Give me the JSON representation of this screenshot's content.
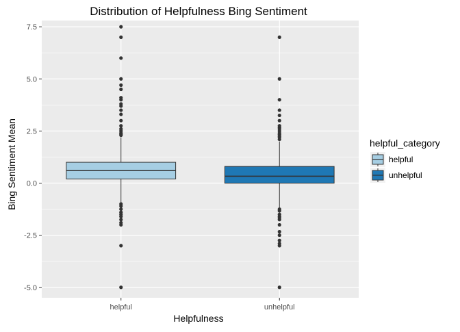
{
  "chart_data": {
    "type": "boxplot",
    "title": "Distribution of Helpfulness Bing Sentiment",
    "xlabel": "Helpfulness",
    "ylabel": "Bing Sentiment Mean",
    "ylim": [
      -5.5,
      7.8
    ],
    "yticks": [
      -5.0,
      -2.5,
      0.0,
      2.5,
      5.0,
      7.5
    ],
    "ytick_labels": [
      "-5.0",
      "-2.5",
      "0.0",
      "2.5",
      "5.0",
      "7.5"
    ],
    "categories": [
      "helpful",
      "unhelpful"
    ],
    "grid": true,
    "legend": {
      "title": "helpful_category",
      "position": "right",
      "entries": [
        "helpful",
        "unhelpful"
      ]
    },
    "colors": {
      "panel": "#EBEBEB",
      "grid": "#FFFFFF",
      "box_line": "#333333",
      "outlier": "#333333"
    },
    "boxes": [
      {
        "category": "helpful",
        "fill": "#A6CEE3",
        "q1": 0.2,
        "median": 0.6,
        "q3": 1.0,
        "whisker_low": -0.95,
        "whisker_high": 2.2,
        "outliers": [
          7.5,
          7.0,
          6.0,
          5.0,
          4.7,
          4.5,
          4.1,
          4.0,
          3.8,
          3.7,
          3.5,
          3.3,
          3.0,
          2.75,
          2.6,
          2.5,
          2.4,
          2.35,
          2.3,
          -1.0,
          -1.1,
          -1.25,
          -1.4,
          -1.5,
          -1.6,
          -1.75,
          -1.9,
          -2.0,
          -3.0,
          -5.0
        ]
      },
      {
        "category": "unhelpful",
        "fill": "#1F78B4",
        "q1": 0.0,
        "median": 0.33,
        "q3": 0.8,
        "whisker_low": -1.2,
        "whisker_high": 2.0,
        "outliers": [
          7.0,
          5.0,
          4.0,
          3.5,
          3.25,
          3.0,
          2.75,
          2.67,
          2.6,
          2.5,
          2.4,
          2.33,
          2.25,
          2.2,
          2.1,
          -1.25,
          -1.33,
          -1.5,
          -1.6,
          -1.67,
          -1.75,
          -2.0,
          -2.33,
          -2.5,
          -2.75,
          -2.9,
          -3.0,
          -5.0
        ]
      }
    ]
  }
}
